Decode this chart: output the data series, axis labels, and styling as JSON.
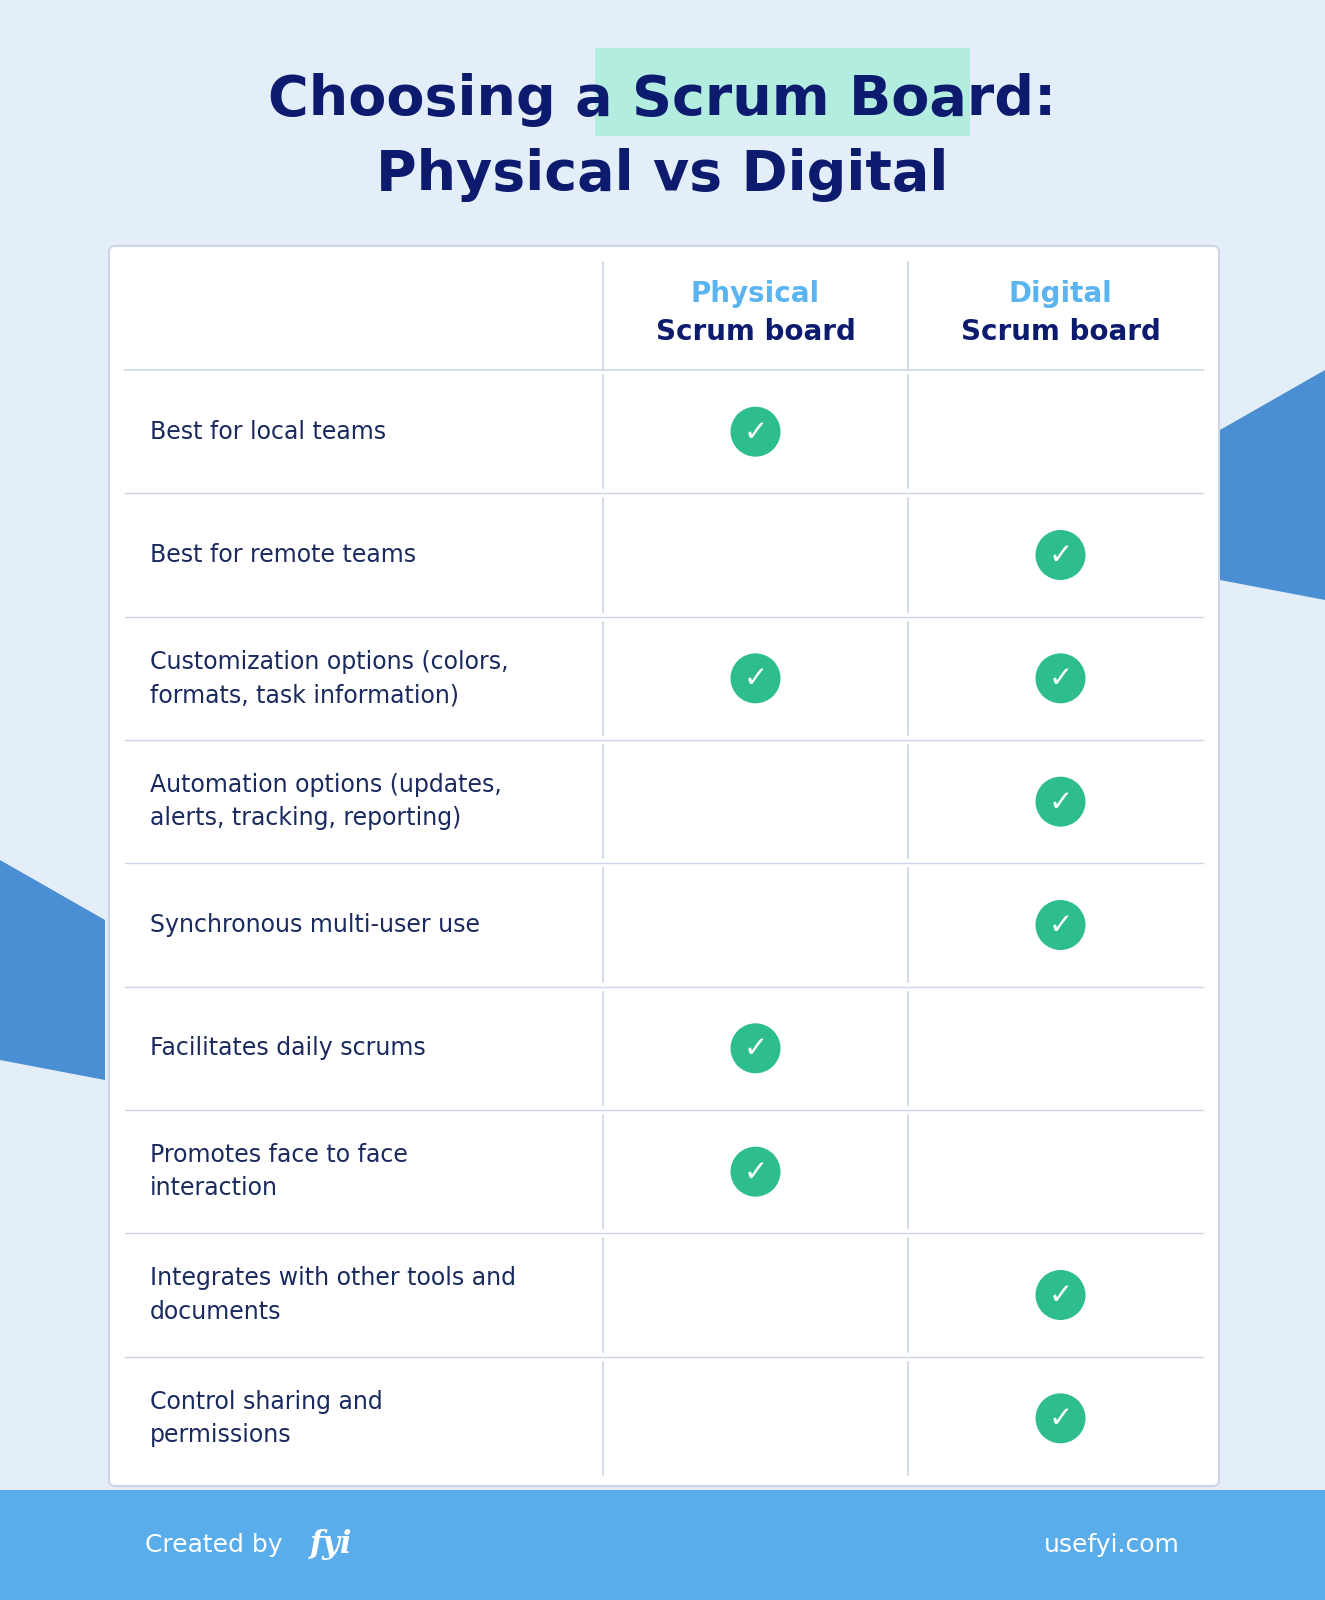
{
  "title_line1": "Choosing a Scrum Board:",
  "title_line2": "Physical vs Digital",
  "title_color": "#0d1b6e",
  "title_highlight_color": "#b2ede0",
  "bg_color": "#e4eef8",
  "table_bg": "#ffffff",
  "table_border_color": "#ccd6e8",
  "col_header_color1": "#5ab4f0",
  "col_header_color2": "#5ab4f0",
  "col_header_label1": "Physical",
  "col_header_label2": "Digital",
  "col_subheader": "Scrum board",
  "col_header_text_dark": "#0d1b6e",
  "row_text_color": "#1a2a5e",
  "check_color": "#2ebd8f",
  "check_white": "#ffffff",
  "footer_bg": "#5aadeb",
  "footer_text_color": "#ffffff",
  "footer_right": "usefyi.com",
  "blue_shape_color": "#4a8fd4",
  "rows": [
    {
      "label": "Best for local teams",
      "physical": true,
      "digital": false
    },
    {
      "label": "Best for remote teams",
      "physical": false,
      "digital": true
    },
    {
      "label": "Customization options (colors,\nformats, task information)",
      "physical": true,
      "digital": true
    },
    {
      "label": "Automation options (updates,\nalerts, tracking, reporting)",
      "physical": false,
      "digital": true
    },
    {
      "label": "Synchronous multi-user use",
      "physical": false,
      "digital": true
    },
    {
      "label": "Facilitates daily scrums",
      "physical": true,
      "digital": false
    },
    {
      "label": "Promotes face to face\ninteraction",
      "physical": true,
      "digital": false
    },
    {
      "label": "Integrates with other tools and\ndocuments",
      "physical": false,
      "digital": true
    },
    {
      "label": "Control sharing and\npermissions",
      "physical": false,
      "digital": true
    }
  ]
}
